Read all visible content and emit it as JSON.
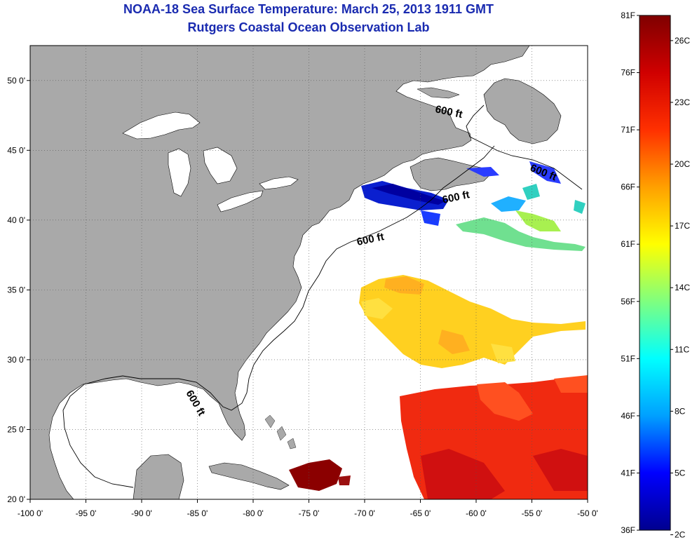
{
  "header": {
    "title": "NOAA-18 Sea Surface Temperature:  March 25, 2013 1911 GMT",
    "subtitle": "Rutgers Coastal Ocean Observation Lab"
  },
  "map": {
    "lon_range": [
      -100,
      -50
    ],
    "lat_range": [
      20,
      52.5
    ],
    "lon_ticks": [
      {
        "value": -100,
        "label": "-100 0'"
      },
      {
        "value": -95,
        "label": "-95 0'"
      },
      {
        "value": -90,
        "label": "-90 0'"
      },
      {
        "value": -85,
        "label": "-85 0'"
      },
      {
        "value": -80,
        "label": "-80 0'"
      },
      {
        "value": -75,
        "label": "-75 0'"
      },
      {
        "value": -70,
        "label": "-70 0'"
      },
      {
        "value": -65,
        "label": "-65 0'"
      },
      {
        "value": -60,
        "label": "-60 0'"
      },
      {
        "value": -55,
        "label": "-55 0'"
      },
      {
        "value": -50,
        "label": "-50 0'"
      }
    ],
    "lat_ticks": [
      {
        "value": 20,
        "label": "20 0'"
      },
      {
        "value": 25,
        "label": "25 0'"
      },
      {
        "value": 30,
        "label": "30 0'"
      },
      {
        "value": 35,
        "label": "35 0'"
      },
      {
        "value": 40,
        "label": "40 0'"
      },
      {
        "value": 45,
        "label": "45 0'"
      },
      {
        "value": 50,
        "label": "50 0'"
      }
    ],
    "grid": "dotted",
    "contour_labels": [
      "600 ft",
      "600 ft",
      "600 ft",
      "600 ft",
      "600 ft"
    ],
    "colors": {
      "land": "#a9a9a9",
      "water": "#ffffff",
      "title": "#1a2bb0"
    }
  },
  "colorbar": {
    "colors": [
      "#00008f",
      "#0000ff",
      "#00a0ff",
      "#00ffff",
      "#7fff7f",
      "#ffff00",
      "#ffa000",
      "#ff3000",
      "#d00000",
      "#7f0000"
    ],
    "fahrenheit": [
      {
        "value": 36,
        "label": "36F"
      },
      {
        "value": 41,
        "label": "41F"
      },
      {
        "value": 46,
        "label": "46F"
      },
      {
        "value": 51,
        "label": "51F"
      },
      {
        "value": 56,
        "label": "56F"
      },
      {
        "value": 61,
        "label": "61F"
      },
      {
        "value": 66,
        "label": "66F"
      },
      {
        "value": 71,
        "label": "71F"
      },
      {
        "value": 76,
        "label": "76F"
      },
      {
        "value": 81,
        "label": "81F"
      }
    ],
    "celsius": [
      {
        "value": 2,
        "label": "2C"
      },
      {
        "value": 5,
        "label": "5C"
      },
      {
        "value": 8,
        "label": "8C"
      },
      {
        "value": 11,
        "label": "11C"
      },
      {
        "value": 14,
        "label": "14C"
      },
      {
        "value": 17,
        "label": "17C"
      },
      {
        "value": 20,
        "label": "20C"
      },
      {
        "value": 23,
        "label": "23C"
      },
      {
        "value": 26,
        "label": "26C"
      }
    ]
  }
}
